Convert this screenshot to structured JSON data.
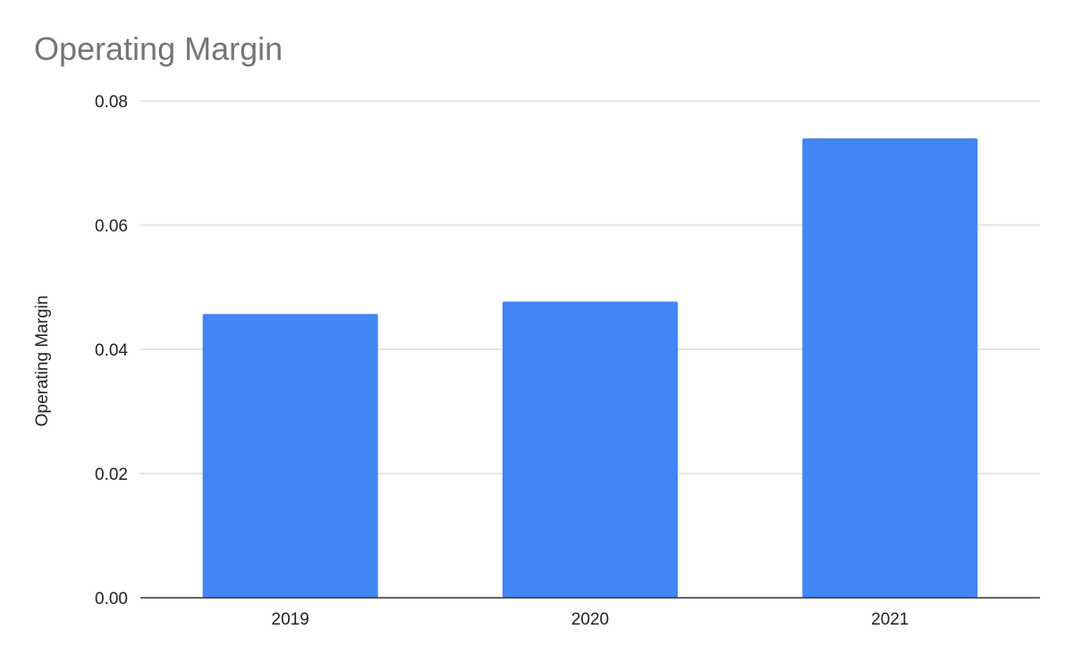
{
  "chart_data": {
    "type": "bar",
    "title": "Operating Margin",
    "xlabel": "",
    "ylabel": "Operating Margin",
    "categories": [
      "2019",
      "2020",
      "2021"
    ],
    "series": [
      {
        "values": [
          0.0457,
          0.0477,
          0.074
        ]
      }
    ],
    "ylim": [
      0,
      0.08
    ],
    "yticks": [
      "0.00",
      "0.02",
      "0.04",
      "0.06",
      "0.08"
    ],
    "ytick_values": [
      0,
      0.02,
      0.04,
      0.06,
      0.08
    ],
    "grid": true,
    "legend": "none",
    "colors": {
      "bar": "#4285f4",
      "grid": "#cccccc",
      "axis": "#333333",
      "title": "#757575",
      "text": "#222222"
    }
  }
}
